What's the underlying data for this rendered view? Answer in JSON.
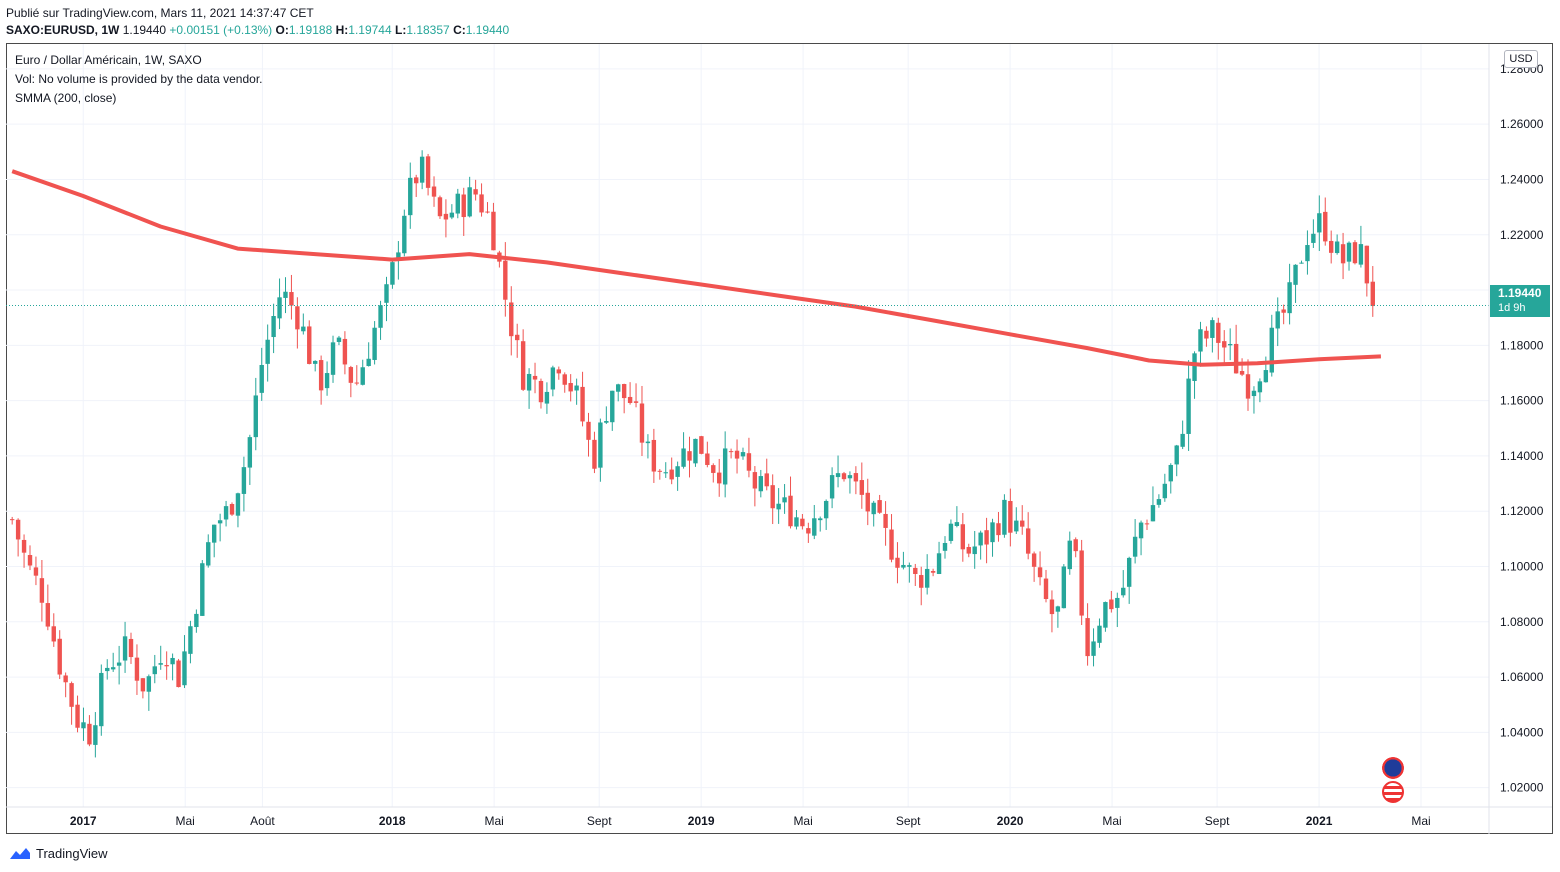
{
  "header": {
    "published": "Publié sur TradingView.com, Mars 11, 2021 14:37:47 CET",
    "symbol": "SAXO:EURUSD, 1W",
    "last": "1.19440",
    "change": "+0.00151 (+0.13%)",
    "open_label": "O:",
    "open": "1.19188",
    "high_label": "H:",
    "high": "1.19744",
    "low_label": "L:",
    "low": "1.18357",
    "close_label": "C:",
    "close": "1.19440"
  },
  "legend": {
    "title": "Euro / Dollar Américain, 1W, SAXO",
    "volume": "Vol: No volume is provided by the data vendor.",
    "indicator": "SMMA (200, close)"
  },
  "price_scale": {
    "currency": "USD",
    "last_price": "1.19440",
    "countdown": "1d 9h"
  },
  "footer": {
    "brand": "TradingView"
  },
  "colors": {
    "up": "#26a69a",
    "down": "#ef5350",
    "smma": "#f05350",
    "grid": "#f0f3fa"
  },
  "icons": [
    "tradingview-logo-icon",
    "eu-flag-event-icon",
    "us-flag-event-icon"
  ],
  "chart_data": {
    "type": "candlestick",
    "title": "Euro / Dollar Américain, 1W, SAXO",
    "ylim": [
      1.013,
      1.289
    ],
    "y_ticks": [
      "1.02000",
      "1.04000",
      "1.06000",
      "1.08000",
      "1.10000",
      "1.12000",
      "1.14000",
      "1.16000",
      "1.18000",
      "1.20000",
      "1.22000",
      "1.24000",
      "1.26000",
      "1.28000"
    ],
    "x_ticks": [
      "2017",
      "Mai",
      "Août",
      "2018",
      "Mai",
      "Sept",
      "2019",
      "Mai",
      "Sept",
      "2020",
      "Mai",
      "Sept",
      "2021",
      "Mai"
    ],
    "smma_label": "SMMA (200, close)",
    "smma": [
      {
        "t": 2016.77,
        "v": 1.243
      },
      {
        "t": 2017.0,
        "v": 1.234
      },
      {
        "t": 2017.25,
        "v": 1.223
      },
      {
        "t": 2017.5,
        "v": 1.215
      },
      {
        "t": 2017.75,
        "v": 1.213
      },
      {
        "t": 2018.0,
        "v": 1.211
      },
      {
        "t": 2018.25,
        "v": 1.213
      },
      {
        "t": 2018.5,
        "v": 1.21
      },
      {
        "t": 2018.75,
        "v": 1.206
      },
      {
        "t": 2019.0,
        "v": 1.202
      },
      {
        "t": 2019.25,
        "v": 1.198
      },
      {
        "t": 2019.5,
        "v": 1.194
      },
      {
        "t": 2019.75,
        "v": 1.189
      },
      {
        "t": 2020.0,
        "v": 1.184
      },
      {
        "t": 2020.25,
        "v": 1.179
      },
      {
        "t": 2020.45,
        "v": 1.1745
      },
      {
        "t": 2020.62,
        "v": 1.173
      },
      {
        "t": 2020.8,
        "v": 1.1735
      },
      {
        "t": 2021.0,
        "v": 1.175
      },
      {
        "t": 2021.2,
        "v": 1.176
      }
    ],
    "close_path": [
      {
        "t": 2016.77,
        "v": 1.117
      },
      {
        "t": 2016.82,
        "v": 1.1
      },
      {
        "t": 2016.87,
        "v": 1.09
      },
      {
        "t": 2016.93,
        "v": 1.062
      },
      {
        "t": 2016.98,
        "v": 1.045
      },
      {
        "t": 2017.02,
        "v": 1.04
      },
      {
        "t": 2017.08,
        "v": 1.065
      },
      {
        "t": 2017.14,
        "v": 1.07
      },
      {
        "t": 2017.2,
        "v": 1.056
      },
      {
        "t": 2017.26,
        "v": 1.072
      },
      {
        "t": 2017.31,
        "v": 1.06
      },
      {
        "t": 2017.37,
        "v": 1.09
      },
      {
        "t": 2017.42,
        "v": 1.115
      },
      {
        "t": 2017.47,
        "v": 1.12
      },
      {
        "t": 2017.53,
        "v": 1.14
      },
      {
        "t": 2017.58,
        "v": 1.175
      },
      {
        "t": 2017.64,
        "v": 1.2
      },
      {
        "t": 2017.7,
        "v": 1.19
      },
      {
        "t": 2017.76,
        "v": 1.165
      },
      {
        "t": 2017.82,
        "v": 1.18
      },
      {
        "t": 2017.88,
        "v": 1.165
      },
      {
        "t": 2017.94,
        "v": 1.185
      },
      {
        "t": 2017.99,
        "v": 1.2
      },
      {
        "t": 2018.04,
        "v": 1.23
      },
      {
        "t": 2018.09,
        "v": 1.245
      },
      {
        "t": 2018.15,
        "v": 1.225
      },
      {
        "t": 2018.21,
        "v": 1.23
      },
      {
        "t": 2018.27,
        "v": 1.235
      },
      {
        "t": 2018.32,
        "v": 1.225
      },
      {
        "t": 2018.37,
        "v": 1.195
      },
      {
        "t": 2018.42,
        "v": 1.17
      },
      {
        "t": 2018.48,
        "v": 1.165
      },
      {
        "t": 2018.54,
        "v": 1.175
      },
      {
        "t": 2018.6,
        "v": 1.16
      },
      {
        "t": 2018.65,
        "v": 1.138
      },
      {
        "t": 2018.71,
        "v": 1.165
      },
      {
        "t": 2018.77,
        "v": 1.16
      },
      {
        "t": 2018.83,
        "v": 1.14
      },
      {
        "t": 2018.88,
        "v": 1.135
      },
      {
        "t": 2018.93,
        "v": 1.14
      },
      {
        "t": 2018.99,
        "v": 1.145
      },
      {
        "t": 2019.05,
        "v": 1.135
      },
      {
        "t": 2019.11,
        "v": 1.14
      },
      {
        "t": 2019.17,
        "v": 1.13
      },
      {
        "t": 2019.23,
        "v": 1.123
      },
      {
        "t": 2019.29,
        "v": 1.12
      },
      {
        "t": 2019.34,
        "v": 1.115
      },
      {
        "t": 2019.4,
        "v": 1.125
      },
      {
        "t": 2019.46,
        "v": 1.135
      },
      {
        "t": 2019.52,
        "v": 1.125
      },
      {
        "t": 2019.57,
        "v": 1.115
      },
      {
        "t": 2019.63,
        "v": 1.105
      },
      {
        "t": 2019.69,
        "v": 1.095
      },
      {
        "t": 2019.75,
        "v": 1.1
      },
      {
        "t": 2019.8,
        "v": 1.115
      },
      {
        "t": 2019.86,
        "v": 1.105
      },
      {
        "t": 2019.92,
        "v": 1.11
      },
      {
        "t": 2019.98,
        "v": 1.12
      },
      {
        "t": 2020.04,
        "v": 1.11
      },
      {
        "t": 2020.1,
        "v": 1.09
      },
      {
        "t": 2020.15,
        "v": 1.08
      },
      {
        "t": 2020.2,
        "v": 1.11
      },
      {
        "t": 2020.25,
        "v": 1.07
      },
      {
        "t": 2020.3,
        "v": 1.085
      },
      {
        "t": 2020.36,
        "v": 1.09
      },
      {
        "t": 2020.42,
        "v": 1.115
      },
      {
        "t": 2020.48,
        "v": 1.125
      },
      {
        "t": 2020.54,
        "v": 1.14
      },
      {
        "t": 2020.6,
        "v": 1.18
      },
      {
        "t": 2020.66,
        "v": 1.185
      },
      {
        "t": 2020.72,
        "v": 1.175
      },
      {
        "t": 2020.78,
        "v": 1.165
      },
      {
        "t": 2020.84,
        "v": 1.18
      },
      {
        "t": 2020.9,
        "v": 1.195
      },
      {
        "t": 2020.96,
        "v": 1.22
      },
      {
        "t": 2021.01,
        "v": 1.225
      },
      {
        "t": 2021.07,
        "v": 1.21
      },
      {
        "t": 2021.13,
        "v": 1.215
      },
      {
        "t": 2021.18,
        "v": 1.1944
      }
    ],
    "last_close": 1.1944
  }
}
